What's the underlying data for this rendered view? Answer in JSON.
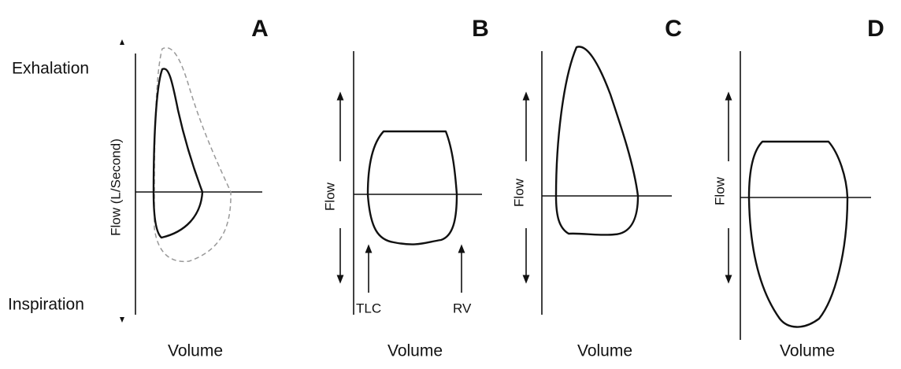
{
  "panels": [
    {
      "label": "A",
      "x_label": "Volume",
      "y_label": "Flow (L/Second)",
      "top_label": "Exhalation",
      "bottom_label": "Inspiration"
    },
    {
      "label": "B",
      "x_label": "Volume",
      "y_label": "Flow",
      "left_marker": "TLC",
      "right_marker": "RV"
    },
    {
      "label": "C",
      "x_label": "Volume",
      "y_label": "Flow"
    },
    {
      "label": "D",
      "x_label": "Volume",
      "y_label": "Flow"
    }
  ]
}
